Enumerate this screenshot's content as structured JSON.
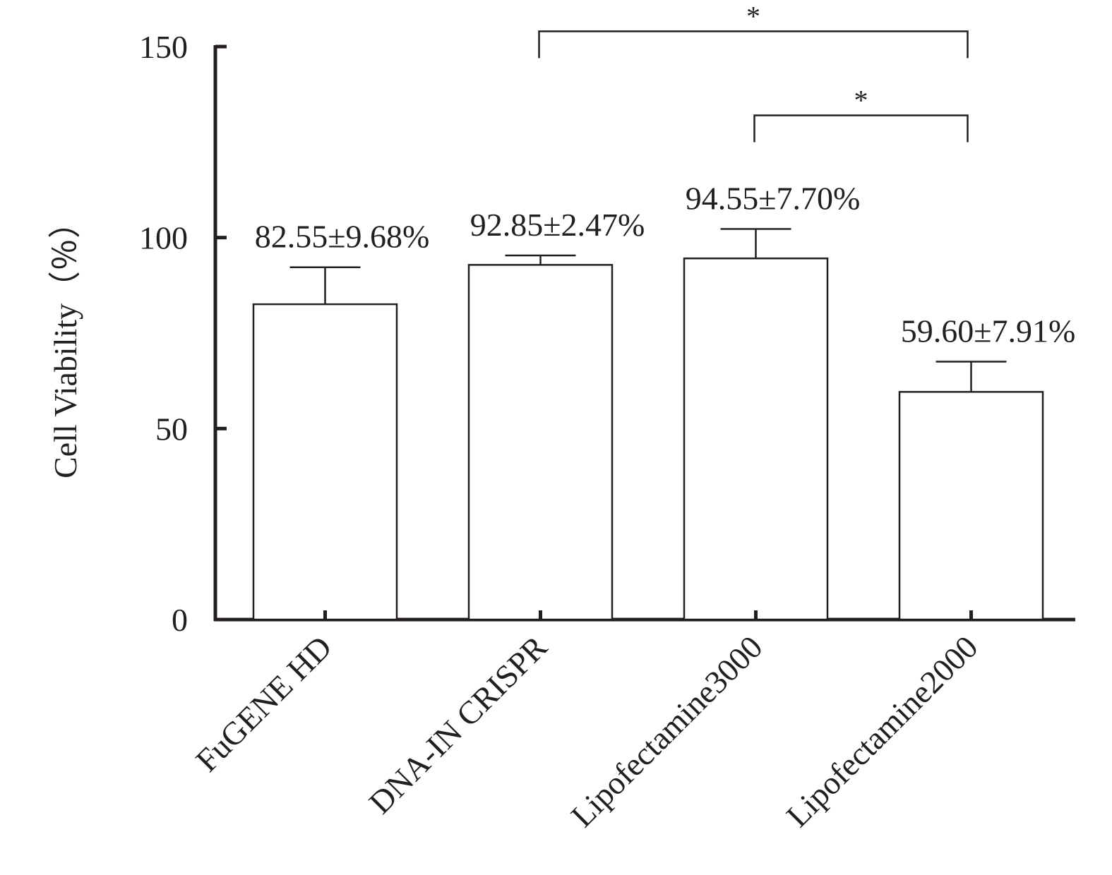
{
  "chart_data": {
    "type": "bar",
    "title": "",
    "xlabel": "",
    "ylabel": "Cell Viability（％）",
    "ylim": [
      0,
      150
    ],
    "yticks": [
      0,
      50,
      100,
      150
    ],
    "categories": [
      "FuGENE HD",
      "DNA-IN CRISPR",
      "Lipofectamine3000",
      "Lipofectamine2000"
    ],
    "values": [
      82.55,
      92.85,
      94.55,
      59.6
    ],
    "errors": [
      9.68,
      2.47,
      7.7,
      7.91
    ],
    "data_labels": [
      "82.55±9.68%",
      "92.85±2.47%",
      "94.55±7.70%",
      "59.60±7.91%"
    ],
    "significance": [
      {
        "from": "DNA-IN CRISPR",
        "to": "Lipofectamine2000",
        "label": "*",
        "y": 154
      },
      {
        "from": "Lipofectamine3000",
        "to": "Lipofectamine2000",
        "label": "*",
        "y": 132
      }
    ],
    "grid": false,
    "legend": "none",
    "colors": {
      "bar_fill": "#ffffff",
      "stroke": "#231f20"
    }
  }
}
